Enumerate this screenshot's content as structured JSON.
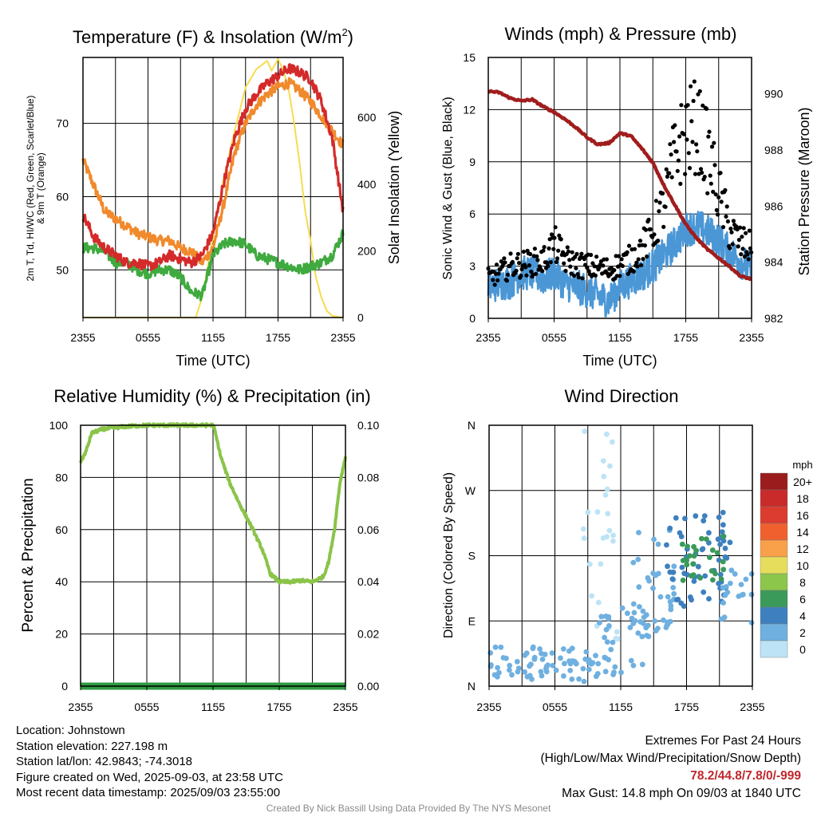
{
  "colors": {
    "red": "#d42a2a",
    "green": "#3faa3f",
    "orange": "#f08a2c",
    "yellow": "#f6dc4f",
    "maroon": "#a11d1d",
    "sky": "#4b97d6",
    "black": "#000000",
    "rh": "#8ac449",
    "precip": "#2e9a42",
    "blue_dot": "#2a72c8"
  },
  "chart_data": [
    {
      "id": "temperature",
      "type": "line",
      "title": "Temperature (F) & Insolation (W/m²)",
      "title_main": "Temperature (F) & Insolation (W/m",
      "title_sup": "2",
      "title_end": ")",
      "xlabel": "Time (UTC)",
      "ylabel_line1": "2m T, Td, HI/WC (Red, Green, Scarlet/Blue)",
      "ylabel_line2": "& 9m T (Orange)",
      "ylabel_right": "Solar Insolation (Yellow)",
      "x_ticks": [
        "2355",
        "0555",
        "1155",
        "1755",
        "2355"
      ],
      "x_range_hours": [
        0,
        24
      ],
      "ylim": [
        43.5,
        79
      ],
      "y_ticks": [
        50,
        60,
        70
      ],
      "ylim_right": [
        0,
        780
      ],
      "y_ticks_right": [
        0,
        200,
        400,
        600
      ],
      "series": [
        {
          "key": "t2m",
          "color": "red",
          "x": [
            0,
            1,
            2,
            3,
            4,
            5,
            6,
            7,
            8,
            9,
            10,
            11,
            12,
            13,
            14,
            15,
            16,
            17,
            18,
            19,
            20,
            21,
            22,
            23,
            24
          ],
          "values": [
            57.5,
            54.5,
            53,
            52,
            51,
            51,
            50.5,
            51,
            52,
            51.5,
            51,
            52,
            55,
            62,
            68,
            72,
            74,
            75.5,
            76.5,
            77.5,
            77,
            76,
            73,
            68,
            58
          ]
        },
        {
          "key": "t9m",
          "color": "orange",
          "x": [
            0,
            1,
            2,
            3,
            4,
            5,
            6,
            7,
            8,
            9,
            10,
            11,
            12,
            13,
            14,
            15,
            16,
            17,
            18,
            19,
            20,
            21,
            22,
            23,
            24
          ],
          "values": [
            65,
            61.5,
            58,
            57,
            56,
            55,
            54.5,
            54,
            54,
            53,
            52.5,
            51,
            53,
            59,
            66,
            70,
            72.5,
            74,
            75,
            75.5,
            74.5,
            73,
            71,
            69,
            67
          ]
        },
        {
          "key": "td2m",
          "color": "green",
          "x": [
            0,
            1,
            2,
            3,
            4,
            5,
            6,
            7,
            8,
            9,
            10,
            11,
            12,
            13,
            14,
            15,
            16,
            17,
            18,
            19,
            20,
            21,
            22,
            23,
            24
          ],
          "values": [
            53,
            53,
            52.5,
            51,
            51,
            50,
            49.5,
            50,
            50,
            49,
            47,
            46.5,
            52,
            53.5,
            54,
            53.5,
            52,
            51.5,
            51,
            50.5,
            50,
            50.5,
            51,
            52,
            55
          ]
        },
        {
          "key": "insolation",
          "color": "yellow",
          "axis": "right",
          "x": [
            0,
            10.4,
            11,
            12,
            13,
            14,
            15,
            16,
            17,
            17.4,
            18,
            18.5,
            19,
            19.5,
            20,
            20.5,
            21,
            21.5,
            22,
            22.5,
            23,
            24
          ],
          "values": [
            0,
            0,
            60,
            240,
            420,
            560,
            690,
            745,
            770,
            740,
            775,
            740,
            680,
            580,
            460,
            320,
            230,
            120,
            60,
            20,
            5,
            0
          ]
        }
      ]
    },
    {
      "id": "winds",
      "type": "line",
      "title": "Winds (mph) & Pressure (mb)",
      "xlabel": "Time (UTC)",
      "ylabel": "Sonic Wind & Gust (Blue, Black)",
      "ylabel_right": "Station Pressure (Maroon)",
      "x_ticks": [
        "2355",
        "0555",
        "1155",
        "1755",
        "2355"
      ],
      "x_range_hours": [
        0,
        24
      ],
      "ylim": [
        0,
        15
      ],
      "y_ticks": [
        0,
        3,
        6,
        9,
        12,
        15
      ],
      "ylim_right": [
        982,
        991.3
      ],
      "y_ticks_right": [
        982,
        984,
        986,
        988,
        990
      ],
      "series": [
        {
          "key": "wind",
          "color": "sky",
          "x": [
            0,
            1,
            2,
            3,
            4,
            5,
            6,
            7,
            8,
            9,
            10,
            11,
            12,
            13,
            14,
            15,
            16,
            17,
            18,
            19,
            20,
            21,
            22,
            23,
            24
          ],
          "values": [
            1.8,
            2,
            2.1,
            2.6,
            2.6,
            2.3,
            2.6,
            2,
            1.8,
            1.6,
            1.3,
            1,
            1.8,
            2.2,
            2.5,
            3,
            3.6,
            4.3,
            5.1,
            5.3,
            5,
            4.5,
            3.8,
            3.3,
            2.8
          ]
        },
        {
          "key": "gust",
          "color": "black",
          "x": [
            0,
            1,
            2,
            3,
            4,
            5,
            6,
            7,
            8,
            9,
            10,
            11,
            12,
            13,
            14,
            15,
            16,
            17,
            18,
            19,
            20,
            21,
            22,
            23,
            24
          ],
          "values": [
            2.3,
            2.6,
            3,
            3.1,
            3.2,
            3.3,
            4.3,
            3.4,
            3.1,
            3,
            2.9,
            2.8,
            3.1,
            3.4,
            4,
            5,
            6.5,
            9.4,
            10.6,
            11.1,
            9.5,
            7.2,
            5.1,
            4.3,
            4
          ]
        },
        {
          "key": "pressure",
          "color": "maroon",
          "axis": "right",
          "x": [
            0,
            1,
            2,
            3,
            4,
            5,
            6,
            7,
            8,
            9,
            10,
            11,
            12,
            13,
            14,
            15,
            16,
            17,
            18,
            19,
            20,
            21,
            22,
            23,
            24
          ],
          "values": [
            990.1,
            990.05,
            989.85,
            989.75,
            989.8,
            989.55,
            989.35,
            989.1,
            988.8,
            988.45,
            988.2,
            988.25,
            988.6,
            988.5,
            988.05,
            987.55,
            986.75,
            986.05,
            985.35,
            984.85,
            984.45,
            984.15,
            983.85,
            983.5,
            983.4
          ]
        }
      ]
    },
    {
      "id": "humidity",
      "type": "line",
      "title": "Relative Humidity (%) & Precipitation (in)",
      "ylabel": "Percent & Precipitation",
      "x_ticks": [
        "2355",
        "0555",
        "1155",
        "1755",
        "2355"
      ],
      "x_range_hours": [
        0,
        24
      ],
      "ylim": [
        0,
        100
      ],
      "y_ticks": [
        0,
        20,
        40,
        60,
        80,
        100
      ],
      "ylim_right": [
        0,
        0.1
      ],
      "y_ticks_right": [
        "0.00",
        "0.02",
        "0.04",
        "0.06",
        "0.08",
        "0.10"
      ],
      "series": [
        {
          "key": "rh",
          "color": "rh",
          "x": [
            0,
            0.5,
            1,
            2,
            3,
            4,
            6,
            8,
            10,
            11,
            12,
            12.1,
            12.7,
            13.5,
            14.5,
            15.5,
            16.5,
            17.2,
            18,
            19,
            20,
            21,
            21.5,
            22,
            22.5,
            23,
            23.5,
            24
          ],
          "values": [
            86,
            90,
            97,
            98.5,
            99,
            99.5,
            100,
            100,
            100,
            100,
            100,
            99,
            88,
            78,
            69,
            61,
            52,
            43,
            40,
            40,
            40.5,
            40,
            41,
            42,
            48,
            60,
            78,
            88
          ]
        },
        {
          "key": "precip",
          "color": "precip",
          "x": [
            0,
            24
          ],
          "values": [
            0,
            0
          ]
        }
      ]
    },
    {
      "id": "direction",
      "type": "scatter",
      "title": "Wind Direction",
      "ylabel": "Direction (Colored By Speed)",
      "x_ticks": [
        "2355",
        "0555",
        "1155",
        "1755",
        "2355"
      ],
      "x_range_hours": [
        0,
        24
      ],
      "ylim_degrees": [
        0,
        360
      ],
      "y_ticks": [
        "N",
        "E",
        "S",
        "W",
        "N"
      ],
      "legend_title": "mph",
      "legend_labels": [
        "20+",
        "18",
        "16",
        "14",
        "12",
        "10",
        "8",
        "6",
        "4",
        "2",
        "0"
      ],
      "legend_colors": [
        "#9b1c1c",
        "#c92a2a",
        "#dc3b2f",
        "#f0602e",
        "#f8a04a",
        "#e6dd5c",
        "#8cc64b",
        "#3a9a5a",
        "#3e80bf",
        "#6fb0e0",
        "#bde3f6"
      ],
      "point_groups": [
        {
          "x_range": [
            0,
            10
          ],
          "dir_range": [
            5,
            55
          ],
          "speed": "2",
          "count": 70
        },
        {
          "x_range": [
            8.3,
            11.5
          ],
          "dir_range": [
            200,
            360
          ],
          "speed": "0",
          "count": 18
        },
        {
          "x_range": [
            9,
            12
          ],
          "dir_range": [
            60,
            180
          ],
          "speed": "0",
          "count": 10
        },
        {
          "x_range": [
            10,
            14
          ],
          "dir_range": [
            10,
            110
          ],
          "speed": "2",
          "count": 30
        },
        {
          "x_range": [
            13,
            17
          ],
          "dir_range": [
            60,
            220
          ],
          "speed": "2",
          "count": 45
        },
        {
          "x_range": [
            16,
            22
          ],
          "dir_range": [
            110,
            240
          ],
          "speed": "4",
          "count": 60
        },
        {
          "x_range": [
            17.5,
            21.5
          ],
          "dir_range": [
            140,
            210
          ],
          "speed": "6",
          "count": 26
        },
        {
          "x_range": [
            21,
            24
          ],
          "dir_range": [
            80,
            160
          ],
          "speed": "2",
          "count": 18
        }
      ]
    }
  ],
  "info": {
    "location": "Location: Johnstown",
    "elevation": "Station elevation: 227.198 m",
    "latlon": "Station lat/lon: 42.9843; -74.3018",
    "created": "Figure created on Wed, 2025-09-03, at 23:58 UTC",
    "recent": "Most recent data timestamp: 2025/09/03 23:55:00",
    "extremes_title": "Extremes For Past 24 Hours",
    "extremes_sub": "(High/Low/Max Wind/Precipitation/Snow Depth)",
    "extremes_values": "78.2/44.8/7.8/0/-999",
    "max_gust": "Max Gust: 14.8 mph On 09/03 at 1840 UTC",
    "credit": "Created By Nick Bassill Using Data Provided By The NYS Mesonet"
  }
}
